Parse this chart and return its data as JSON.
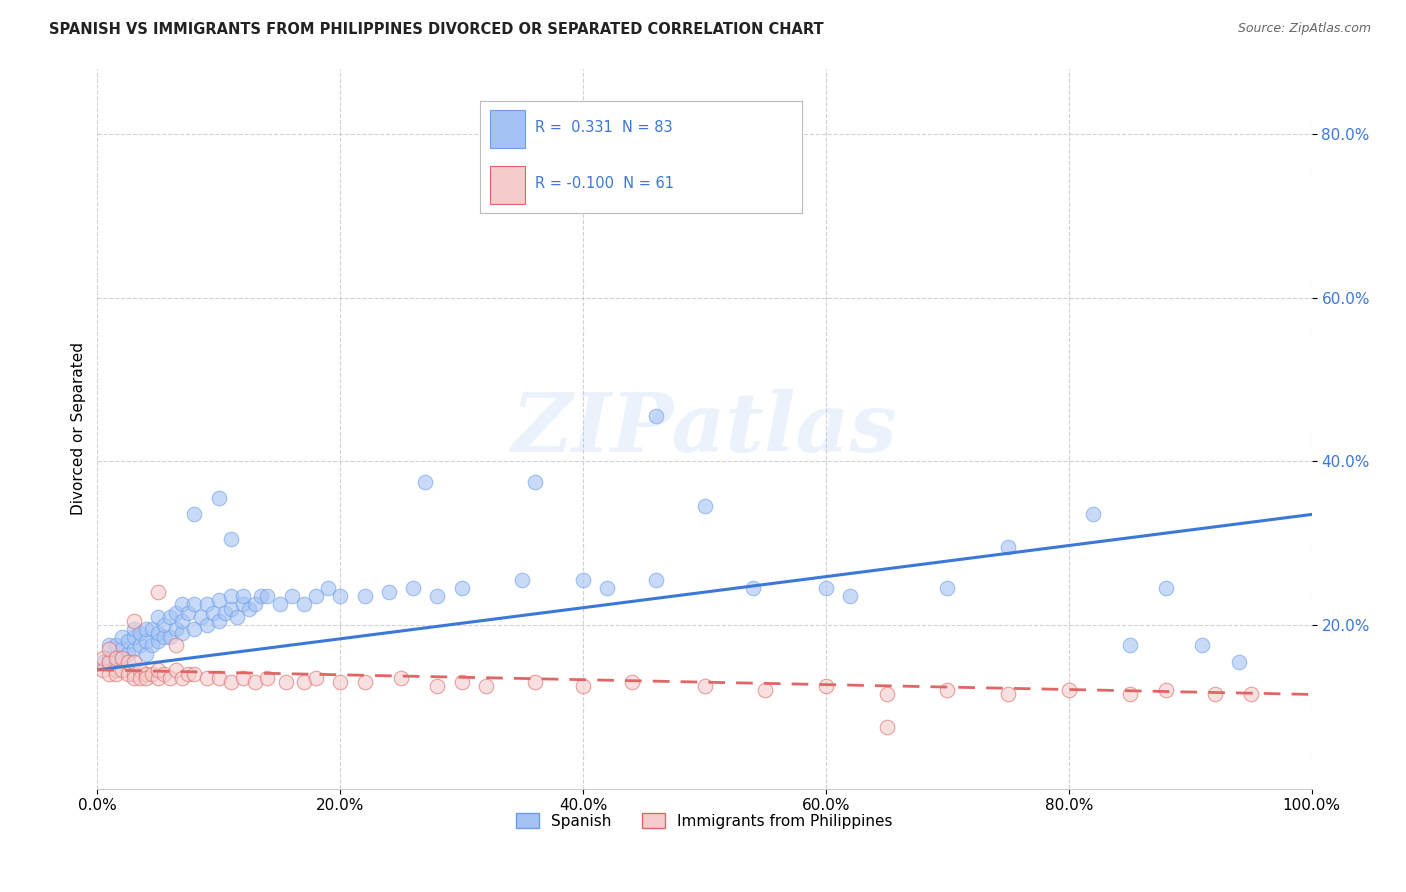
{
  "title": "SPANISH VS IMMIGRANTS FROM PHILIPPINES DIVORCED OR SEPARATED CORRELATION CHART",
  "source": "Source: ZipAtlas.com",
  "ylabel": "Divorced or Separated",
  "xlim": [
    0.0,
    1.0
  ],
  "ylim": [
    0.0,
    0.88
  ],
  "xtick_labels": [
    "0.0%",
    "20.0%",
    "40.0%",
    "60.0%",
    "80.0%",
    "100.0%"
  ],
  "xtick_vals": [
    0.0,
    0.2,
    0.4,
    0.6,
    0.8,
    1.0
  ],
  "ytick_labels": [
    "20.0%",
    "40.0%",
    "60.0%",
    "80.0%"
  ],
  "ytick_vals": [
    0.2,
    0.4,
    0.6,
    0.8
  ],
  "legend_label1": "Spanish",
  "legend_label2": "Immigrants from Philippines",
  "R1": 0.331,
  "N1": 83,
  "R2": -0.1,
  "N2": 61,
  "color_blue": "#a4c2f4",
  "color_pink": "#f4cccc",
  "edge_blue": "#6d9eeb",
  "edge_pink": "#e06666",
  "line_blue": "#3c78d8",
  "line_pink": "#cc4125",
  "tick_color": "#3c78d8",
  "watermark": "ZIPatlas",
  "blue_x": [
    0.005,
    0.01,
    0.01,
    0.015,
    0.015,
    0.02,
    0.02,
    0.02,
    0.025,
    0.025,
    0.03,
    0.03,
    0.03,
    0.035,
    0.035,
    0.04,
    0.04,
    0.04,
    0.045,
    0.045,
    0.05,
    0.05,
    0.05,
    0.055,
    0.055,
    0.06,
    0.06,
    0.065,
    0.065,
    0.07,
    0.07,
    0.07,
    0.075,
    0.08,
    0.08,
    0.085,
    0.09,
    0.09,
    0.095,
    0.1,
    0.1,
    0.105,
    0.11,
    0.11,
    0.115,
    0.12,
    0.12,
    0.125,
    0.13,
    0.135,
    0.14,
    0.15,
    0.16,
    0.17,
    0.18,
    0.19,
    0.2,
    0.22,
    0.24,
    0.26,
    0.28,
    0.3,
    0.35,
    0.4,
    0.42,
    0.46,
    0.5,
    0.54,
    0.6,
    0.62,
    0.7,
    0.75,
    0.82,
    0.85,
    0.88,
    0.91,
    0.94,
    0.08,
    0.1,
    0.11,
    0.27,
    0.36,
    0.46
  ],
  "blue_y": [
    0.155,
    0.16,
    0.175,
    0.16,
    0.175,
    0.155,
    0.17,
    0.185,
    0.165,
    0.18,
    0.17,
    0.185,
    0.195,
    0.175,
    0.19,
    0.165,
    0.18,
    0.195,
    0.175,
    0.195,
    0.18,
    0.19,
    0.21,
    0.185,
    0.2,
    0.185,
    0.21,
    0.195,
    0.215,
    0.19,
    0.205,
    0.225,
    0.215,
    0.195,
    0.225,
    0.21,
    0.2,
    0.225,
    0.215,
    0.205,
    0.23,
    0.215,
    0.22,
    0.235,
    0.21,
    0.225,
    0.235,
    0.22,
    0.225,
    0.235,
    0.235,
    0.225,
    0.235,
    0.225,
    0.235,
    0.245,
    0.235,
    0.235,
    0.24,
    0.245,
    0.235,
    0.245,
    0.255,
    0.255,
    0.245,
    0.255,
    0.345,
    0.245,
    0.245,
    0.235,
    0.245,
    0.295,
    0.335,
    0.175,
    0.245,
    0.175,
    0.155,
    0.335,
    0.355,
    0.305,
    0.375,
    0.375,
    0.455
  ],
  "pink_x": [
    0.005,
    0.005,
    0.01,
    0.01,
    0.01,
    0.015,
    0.015,
    0.015,
    0.02,
    0.02,
    0.025,
    0.025,
    0.03,
    0.03,
    0.03,
    0.035,
    0.035,
    0.04,
    0.04,
    0.045,
    0.05,
    0.05,
    0.055,
    0.06,
    0.065,
    0.07,
    0.075,
    0.08,
    0.09,
    0.1,
    0.11,
    0.12,
    0.13,
    0.14,
    0.155,
    0.17,
    0.18,
    0.2,
    0.22,
    0.25,
    0.28,
    0.3,
    0.32,
    0.36,
    0.4,
    0.44,
    0.5,
    0.55,
    0.6,
    0.65,
    0.7,
    0.75,
    0.8,
    0.85,
    0.88,
    0.92,
    0.95,
    0.03,
    0.05,
    0.065,
    0.65
  ],
  "pink_y": [
    0.145,
    0.16,
    0.14,
    0.155,
    0.17,
    0.145,
    0.16,
    0.14,
    0.145,
    0.16,
    0.14,
    0.155,
    0.14,
    0.155,
    0.135,
    0.145,
    0.135,
    0.14,
    0.135,
    0.14,
    0.135,
    0.145,
    0.14,
    0.135,
    0.145,
    0.135,
    0.14,
    0.14,
    0.135,
    0.135,
    0.13,
    0.135,
    0.13,
    0.135,
    0.13,
    0.13,
    0.135,
    0.13,
    0.13,
    0.135,
    0.125,
    0.13,
    0.125,
    0.13,
    0.125,
    0.13,
    0.125,
    0.12,
    0.125,
    0.115,
    0.12,
    0.115,
    0.12,
    0.115,
    0.12,
    0.115,
    0.115,
    0.205,
    0.24,
    0.175,
    0.075
  ],
  "blue_line_x": [
    0.0,
    1.0
  ],
  "blue_line_y": [
    0.145,
    0.335
  ],
  "pink_line_x": [
    0.0,
    1.0
  ],
  "pink_line_y": [
    0.145,
    0.115
  ]
}
